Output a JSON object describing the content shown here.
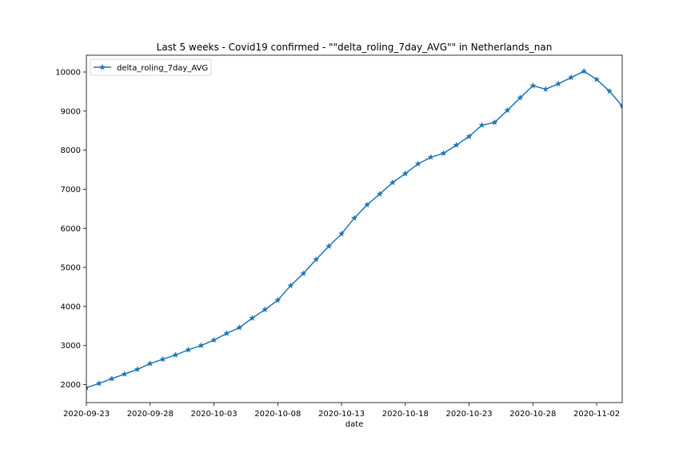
{
  "chart_data": {
    "type": "line",
    "title": "Last 5 weeks - Covid19 confirmed - \"\"delta_roling_7day_AVG\"\"  in Netherlands_nan",
    "xlabel": "date",
    "ylabel": "",
    "x_tick_labels": [
      "2020-09-23",
      "2020-09-28",
      "2020-10-03",
      "2020-10-08",
      "2020-10-13",
      "2020-10-18",
      "2020-10-23",
      "2020-10-28",
      "2020-11-02"
    ],
    "y_tick_labels": [
      "2000",
      "3000",
      "4000",
      "5000",
      "6000",
      "7000",
      "8000",
      "9000",
      "10000"
    ],
    "y_ticks": [
      2000,
      3000,
      4000,
      5000,
      6000,
      7000,
      8000,
      9000,
      10000
    ],
    "xlim": [
      "2020-09-23",
      "2020-11-04"
    ],
    "ylim": [
      1540,
      10430
    ],
    "legend_position": "top-left",
    "grid": false,
    "series": [
      {
        "name": "delta_roling_7day_AVG",
        "color": "#1f77b4",
        "marker": "star",
        "x": [
          "2020-09-23",
          "2020-09-24",
          "2020-09-25",
          "2020-09-26",
          "2020-09-27",
          "2020-09-28",
          "2020-09-29",
          "2020-09-30",
          "2020-10-01",
          "2020-10-02",
          "2020-10-03",
          "2020-10-04",
          "2020-10-05",
          "2020-10-06",
          "2020-10-07",
          "2020-10-08",
          "2020-10-09",
          "2020-10-10",
          "2020-10-11",
          "2020-10-12",
          "2020-10-13",
          "2020-10-14",
          "2020-10-15",
          "2020-10-16",
          "2020-10-17",
          "2020-10-18",
          "2020-10-19",
          "2020-10-20",
          "2020-10-21",
          "2020-10-22",
          "2020-10-23",
          "2020-10-24",
          "2020-10-25",
          "2020-10-26",
          "2020-10-27",
          "2020-10-28",
          "2020-10-29",
          "2020-10-30",
          "2020-10-31",
          "2020-11-01",
          "2020-11-02",
          "2020-11-03",
          "2020-11-04"
        ],
        "values": [
          1920,
          2030,
          2150,
          2270,
          2390,
          2540,
          2650,
          2760,
          2890,
          3000,
          3140,
          3310,
          3460,
          3700,
          3920,
          4160,
          4530,
          4840,
          5200,
          5540,
          5860,
          6260,
          6600,
          6880,
          7170,
          7400,
          7650,
          7820,
          7920,
          8130,
          8350,
          8640,
          8710,
          9020,
          9340,
          9650,
          9560,
          9700,
          9860,
          10020,
          9810,
          9510,
          9130
        ]
      }
    ]
  }
}
